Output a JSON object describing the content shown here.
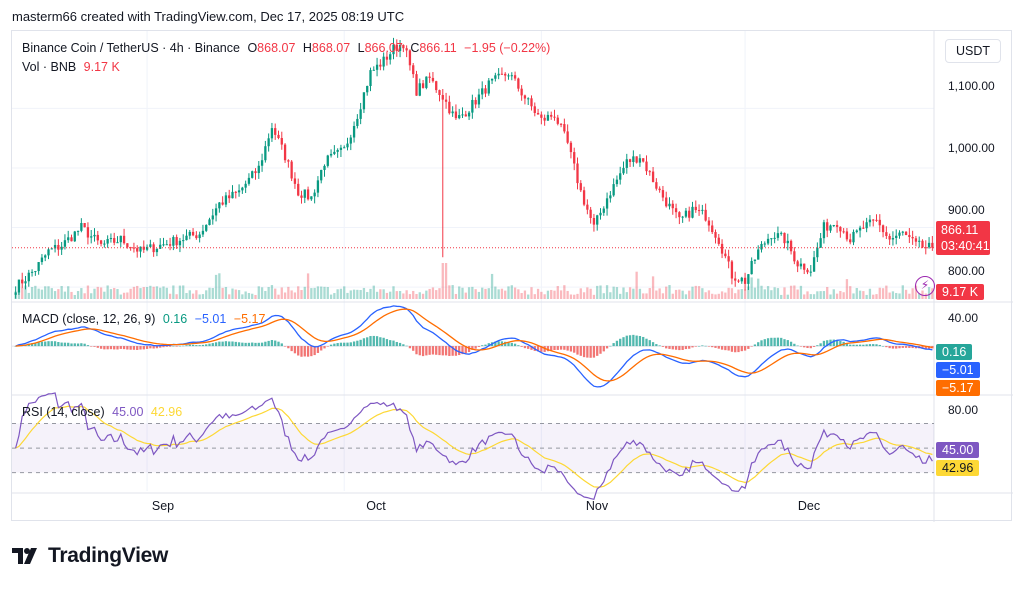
{
  "header": {
    "text": "masterm66 created with TradingView.com, Dec 17, 2025 08:19 UTC"
  },
  "main_legend": {
    "symbol": "Binance Coin / TetherUS · 4h · Binance",
    "o_label": "O",
    "o_value": "868.07",
    "h_label": "H",
    "h_value": "868.07",
    "l_label": "L",
    "l_value": "866.07",
    "c_label": "C",
    "c_value": "866.11",
    "change": "−1.95 (−0.22%)",
    "vol_label": "Vol · BNB",
    "vol_value": "9.17 K"
  },
  "currency_button": "USDT",
  "price_axis": [
    "1,100.00",
    "1,000.00",
    "900.00",
    "800.00"
  ],
  "last_price": {
    "value": "866.11",
    "countdown": "03:40:41"
  },
  "volume_tag": "9.17 K",
  "macd_legend": {
    "title": "MACD (close, 12, 26, 9)",
    "hist": "0.16",
    "macd": "−5.01",
    "signal": "−5.17"
  },
  "macd_axis": [
    "40.00"
  ],
  "macd_tags": {
    "hist": "0.16",
    "macd": "−5.01",
    "signal": "−5.17"
  },
  "rsi_legend": {
    "title": "RSI (14, close)",
    "rsi": "45.00",
    "ma": "42.96"
  },
  "rsi_axis": [
    "80.00"
  ],
  "rsi_tags": {
    "rsi": "45.00",
    "ma": "42.96"
  },
  "x_axis": [
    "Sep",
    "Oct",
    "Nov",
    "Dec"
  ],
  "footer": {
    "brand": "TradingView"
  },
  "icons": {
    "bolt": "lightning-bolt-icon",
    "logo": "tradingview-logo-icon"
  },
  "colors": {
    "up": "#089981",
    "down": "#f23645",
    "macd": "#2962ff",
    "signal": "#ff6d00",
    "rsi": "#7e57c2",
    "rsi_ma": "#fdd835"
  },
  "chart_data": {
    "type": "line",
    "price_anchors": [
      [
        0,
        800
      ],
      [
        6,
        830
      ],
      [
        10,
        860
      ],
      [
        14,
        870
      ],
      [
        20,
        900
      ],
      [
        26,
        870
      ],
      [
        32,
        880
      ],
      [
        38,
        860
      ],
      [
        44,
        870
      ],
      [
        50,
        880
      ],
      [
        56,
        890
      ],
      [
        62,
        940
      ],
      [
        68,
        960
      ],
      [
        74,
        1000
      ],
      [
        78,
        1070
      ],
      [
        82,
        1020
      ],
      [
        86,
        960
      ],
      [
        90,
        950
      ],
      [
        94,
        1010
      ],
      [
        100,
        1030
      ],
      [
        104,
        1090
      ],
      [
        108,
        1160
      ],
      [
        112,
        1180
      ],
      [
        115,
        1200
      ],
      [
        118,
        1210
      ],
      [
        122,
        1130
      ],
      [
        126,
        1150
      ],
      [
        130,
        1120
      ],
      [
        134,
        1080
      ],
      [
        138,
        1100
      ],
      [
        144,
        1140
      ],
      [
        150,
        1160
      ],
      [
        156,
        1110
      ],
      [
        160,
        1080
      ],
      [
        164,
        1090
      ],
      [
        168,
        1040
      ],
      [
        172,
        960
      ],
      [
        176,
        900
      ],
      [
        180,
        950
      ],
      [
        186,
        1010
      ],
      [
        190,
        1020
      ],
      [
        196,
        960
      ],
      [
        202,
        910
      ],
      [
        206,
        930
      ],
      [
        210,
        920
      ],
      [
        214,
        880
      ],
      [
        218,
        820
      ],
      [
        222,
        810
      ],
      [
        226,
        860
      ],
      [
        230,
        890
      ],
      [
        234,
        880
      ],
      [
        238,
        840
      ],
      [
        242,
        830
      ],
      [
        246,
        900
      ],
      [
        250,
        910
      ],
      [
        254,
        880
      ],
      [
        258,
        900
      ],
      [
        262,
        910
      ],
      [
        266,
        880
      ],
      [
        270,
        890
      ],
      [
        274,
        870
      ],
      [
        278,
        866
      ]
    ],
    "price_axis_range": [
      780,
      1230
    ],
    "macd_axis_range": [
      -60,
      50
    ],
    "rsi_axis_range": [
      15,
      90
    ],
    "rsi_levels": [
      70,
      50,
      30
    ],
    "x_ticks": [
      {
        "label": "Sep",
        "bar": 40
      },
      {
        "label": "Oct",
        "bar": 100
      },
      {
        "label": "Nov",
        "bar": 160
      },
      {
        "label": "Dec",
        "bar": 222
      }
    ],
    "total_bars": 280,
    "last_price": 866.11
  }
}
